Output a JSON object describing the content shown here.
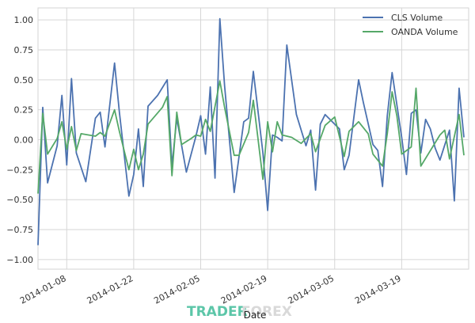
{
  "chart_data": {
    "type": "line",
    "xlabel": "Date",
    "ylabel": "",
    "ylim": [
      -1.08,
      1.1
    ],
    "xlim": [
      "2014-01-02",
      "2014-04-02"
    ],
    "grid": true,
    "legend_position": "top-right",
    "x_ticks": [
      "2014-01-08",
      "2014-01-22",
      "2014-02-05",
      "2014-02-19",
      "2014-03-05",
      "2014-03-19"
    ],
    "y_ticks": [
      1.0,
      0.75,
      0.5,
      0.25,
      0.0,
      -0.25,
      -0.5,
      -0.75,
      -1.0
    ],
    "y_tick_labels": [
      "1.00",
      "0.75",
      "0.50",
      "0.25",
      "0.00",
      "−0.25",
      "−0.50",
      "−0.75",
      "−1.00"
    ],
    "series": [
      {
        "name": "CLS Volume",
        "color": "#4c72b0",
        "points": [
          [
            "2014-01-02",
            -0.88
          ],
          [
            "2014-01-03",
            0.27
          ],
          [
            "2014-01-04",
            -0.36
          ],
          [
            "2014-01-06",
            -0.05
          ],
          [
            "2014-01-07",
            0.37
          ],
          [
            "2014-01-08",
            -0.21
          ],
          [
            "2014-01-09",
            0.51
          ],
          [
            "2014-01-10",
            -0.11
          ],
          [
            "2014-01-12",
            -0.35
          ],
          [
            "2014-01-14",
            0.18
          ],
          [
            "2014-01-15",
            0.23
          ],
          [
            "2014-01-16",
            -0.06
          ],
          [
            "2014-01-18",
            0.64
          ],
          [
            "2014-01-19",
            0.23
          ],
          [
            "2014-01-21",
            -0.47
          ],
          [
            "2014-01-22",
            -0.29
          ],
          [
            "2014-01-23",
            0.09
          ],
          [
            "2014-01-24",
            -0.39
          ],
          [
            "2014-01-25",
            0.28
          ],
          [
            "2014-01-27",
            0.37
          ],
          [
            "2014-01-29",
            0.5
          ],
          [
            "2014-01-30",
            -0.22
          ],
          [
            "2014-01-31",
            0.18
          ],
          [
            "2014-02-02",
            -0.27
          ],
          [
            "2014-02-04",
            0.03
          ],
          [
            "2014-02-05",
            0.2
          ],
          [
            "2014-02-06",
            -0.12
          ],
          [
            "2014-02-07",
            0.44
          ],
          [
            "2014-02-08",
            -0.32
          ],
          [
            "2014-02-09",
            1.01
          ],
          [
            "2014-02-10",
            0.45
          ],
          [
            "2014-02-12",
            -0.44
          ],
          [
            "2014-02-14",
            0.15
          ],
          [
            "2014-02-15",
            0.18
          ],
          [
            "2014-02-16",
            0.57
          ],
          [
            "2014-02-18",
            -0.11
          ],
          [
            "2014-02-19",
            -0.59
          ],
          [
            "2014-02-20",
            0.04
          ],
          [
            "2014-02-21",
            0.02
          ],
          [
            "2014-02-22",
            -0.01
          ],
          [
            "2014-02-23",
            0.79
          ],
          [
            "2014-02-25",
            0.21
          ],
          [
            "2014-02-27",
            -0.05
          ],
          [
            "2014-02-28",
            0.08
          ],
          [
            "2014-03-01",
            -0.42
          ],
          [
            "2014-03-02",
            0.13
          ],
          [
            "2014-03-03",
            0.21
          ],
          [
            "2014-03-06",
            0.09
          ],
          [
            "2014-03-07",
            -0.25
          ],
          [
            "2014-03-08",
            -0.13
          ],
          [
            "2014-03-10",
            0.5
          ],
          [
            "2014-03-11",
            0.31
          ],
          [
            "2014-03-13",
            -0.04
          ],
          [
            "2014-03-14",
            -0.09
          ],
          [
            "2014-03-15",
            -0.39
          ],
          [
            "2014-03-16",
            0.2
          ],
          [
            "2014-03-17",
            0.56
          ],
          [
            "2014-03-19",
            0.02
          ],
          [
            "2014-03-20",
            -0.29
          ],
          [
            "2014-03-21",
            0.22
          ],
          [
            "2014-03-22",
            0.25
          ],
          [
            "2014-03-23",
            -0.11
          ],
          [
            "2014-03-24",
            0.17
          ],
          [
            "2014-03-25",
            0.09
          ],
          [
            "2014-03-26",
            -0.07
          ],
          [
            "2014-03-27",
            -0.17
          ],
          [
            "2014-03-29",
            0.08
          ],
          [
            "2014-03-30",
            -0.51
          ],
          [
            "2014-03-31",
            0.43
          ],
          [
            "2014-04-01",
            0.02
          ]
        ]
      },
      {
        "name": "OANDA Volume",
        "color": "#55a868",
        "points": [
          [
            "2014-01-02",
            -0.45
          ],
          [
            "2014-01-03",
            0.22
          ],
          [
            "2014-01-04",
            -0.12
          ],
          [
            "2014-01-06",
            0.01
          ],
          [
            "2014-01-07",
            0.15
          ],
          [
            "2014-01-08",
            -0.08
          ],
          [
            "2014-01-09",
            0.11
          ],
          [
            "2014-01-10",
            -0.09
          ],
          [
            "2014-01-11",
            0.05
          ],
          [
            "2014-01-14",
            0.03
          ],
          [
            "2014-01-15",
            0.06
          ],
          [
            "2014-01-16",
            0.03
          ],
          [
            "2014-01-18",
            0.25
          ],
          [
            "2014-01-19",
            0.07
          ],
          [
            "2014-01-21",
            -0.25
          ],
          [
            "2014-01-22",
            -0.08
          ],
          [
            "2014-01-23",
            -0.25
          ],
          [
            "2014-01-24",
            -0.12
          ],
          [
            "2014-01-25",
            0.13
          ],
          [
            "2014-01-28",
            0.27
          ],
          [
            "2014-01-29",
            0.36
          ],
          [
            "2014-01-30",
            -0.3
          ],
          [
            "2014-01-31",
            0.23
          ],
          [
            "2014-02-01",
            -0.04
          ],
          [
            "2014-02-03",
            0.01
          ],
          [
            "2014-02-04",
            0.04
          ],
          [
            "2014-02-05",
            0.03
          ],
          [
            "2014-02-06",
            0.17
          ],
          [
            "2014-02-07",
            0.07
          ],
          [
            "2014-02-09",
            0.49
          ],
          [
            "2014-02-10",
            0.27
          ],
          [
            "2014-02-12",
            -0.13
          ],
          [
            "2014-02-13",
            -0.13
          ],
          [
            "2014-02-15",
            0.06
          ],
          [
            "2014-02-16",
            0.33
          ],
          [
            "2014-02-18",
            -0.33
          ],
          [
            "2014-02-19",
            0.15
          ],
          [
            "2014-02-20",
            -0.1
          ],
          [
            "2014-02-21",
            0.15
          ],
          [
            "2014-02-22",
            0.04
          ],
          [
            "2014-02-24",
            0.02
          ],
          [
            "2014-02-26",
            -0.03
          ],
          [
            "2014-02-28",
            0.05
          ],
          [
            "2014-03-01",
            -0.1
          ],
          [
            "2014-03-03",
            0.12
          ],
          [
            "2014-03-05",
            0.19
          ],
          [
            "2014-03-07",
            -0.14
          ],
          [
            "2014-03-08",
            0.07
          ],
          [
            "2014-03-10",
            0.15
          ],
          [
            "2014-03-12",
            0.05
          ],
          [
            "2014-03-13",
            -0.12
          ],
          [
            "2014-03-15",
            -0.22
          ],
          [
            "2014-03-16",
            0.05
          ],
          [
            "2014-03-17",
            0.4
          ],
          [
            "2014-03-18",
            0.2
          ],
          [
            "2014-03-19",
            -0.12
          ],
          [
            "2014-03-21",
            -0.06
          ],
          [
            "2014-03-22",
            0.43
          ],
          [
            "2014-03-23",
            -0.22
          ],
          [
            "2014-03-27",
            0.04
          ],
          [
            "2014-03-28",
            0.08
          ],
          [
            "2014-03-29",
            -0.16
          ],
          [
            "2014-03-31",
            0.21
          ],
          [
            "2014-04-01",
            -0.13
          ]
        ]
      }
    ]
  },
  "watermark": {
    "part1": "TRADER",
    "part2": "FOREX"
  }
}
